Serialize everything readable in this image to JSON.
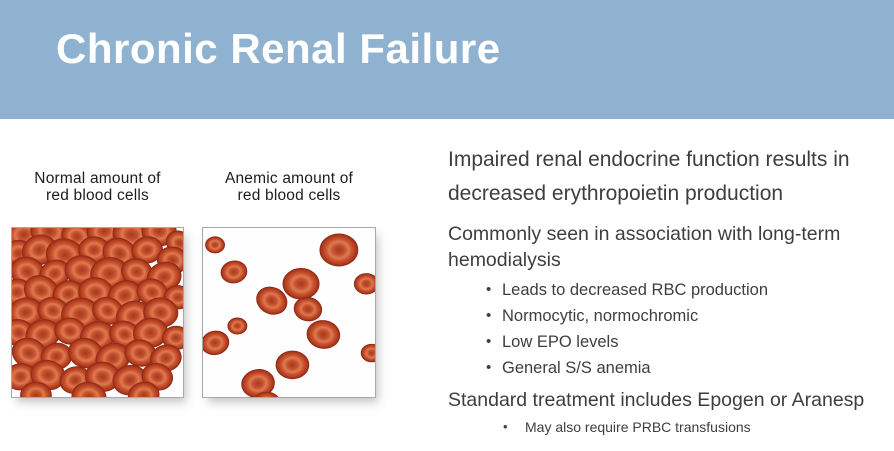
{
  "slide": {
    "title": "Chronic Renal Failure"
  },
  "figures": [
    {
      "caption": "Normal amount of red blood cells",
      "cells": [
        [
          7,
          4,
          10,
          -15
        ],
        [
          22,
          2,
          11,
          10
        ],
        [
          38,
          5,
          9,
          20
        ],
        [
          54,
          2,
          10,
          -10
        ],
        [
          70,
          4,
          11,
          15
        ],
        [
          86,
          2,
          10,
          0
        ],
        [
          98,
          9,
          8,
          30
        ],
        [
          4,
          15,
          9,
          0
        ],
        [
          16,
          13,
          10,
          -20
        ],
        [
          31,
          16,
          11,
          12
        ],
        [
          48,
          13,
          9,
          0
        ],
        [
          63,
          15,
          10,
          25
        ],
        [
          79,
          13,
          9,
          -12
        ],
        [
          94,
          19,
          9,
          8
        ],
        [
          9,
          26,
          10,
          18
        ],
        [
          25,
          27,
          9,
          -25
        ],
        [
          41,
          25,
          10,
          5
        ],
        [
          57,
          27,
          11,
          -8
        ],
        [
          73,
          26,
          9,
          14
        ],
        [
          89,
          29,
          10,
          -18
        ],
        [
          3,
          38,
          9,
          -5
        ],
        [
          17,
          37,
          10,
          22
        ],
        [
          33,
          39,
          9,
          -15
        ],
        [
          49,
          38,
          10,
          8
        ],
        [
          66,
          40,
          10,
          -22
        ],
        [
          82,
          38,
          9,
          16
        ],
        [
          97,
          41,
          8,
          0
        ],
        [
          8,
          50,
          10,
          -10
        ],
        [
          24,
          49,
          9,
          15
        ],
        [
          40,
          51,
          11,
          -5
        ],
        [
          56,
          49,
          9,
          20
        ],
        [
          71,
          52,
          10,
          -15
        ],
        [
          87,
          50,
          10,
          5
        ],
        [
          4,
          62,
          9,
          12
        ],
        [
          18,
          63,
          10,
          -18
        ],
        [
          34,
          61,
          9,
          8
        ],
        [
          50,
          64,
          10,
          -12
        ],
        [
          66,
          63,
          9,
          18
        ],
        [
          81,
          62,
          10,
          -8
        ],
        [
          96,
          65,
          8,
          0
        ],
        [
          10,
          74,
          10,
          20
        ],
        [
          26,
          76,
          9,
          -10
        ],
        [
          43,
          74,
          10,
          15
        ],
        [
          59,
          77,
          10,
          -20
        ],
        [
          75,
          74,
          9,
          10
        ],
        [
          90,
          77,
          9,
          -14
        ],
        [
          5,
          88,
          9,
          -8
        ],
        [
          21,
          87,
          10,
          12
        ],
        [
          37,
          90,
          9,
          -16
        ],
        [
          53,
          88,
          10,
          6
        ],
        [
          69,
          90,
          10,
          -12
        ],
        [
          85,
          88,
          9,
          18
        ],
        [
          14,
          99,
          9,
          0
        ],
        [
          45,
          100,
          10,
          10
        ],
        [
          77,
          99,
          9,
          -10
        ]
      ]
    },
    {
      "caption": "Anemic amount of red blood cells",
      "cells": [
        [
          7,
          10,
          5.5,
          0
        ],
        [
          18,
          26,
          7.5,
          -10
        ],
        [
          40,
          43,
          9,
          25
        ],
        [
          57,
          33,
          10.5,
          0
        ],
        [
          61,
          48,
          8,
          10
        ],
        [
          79,
          13,
          11,
          0
        ],
        [
          95,
          33,
          7,
          0
        ],
        [
          20,
          58,
          5.5,
          0
        ],
        [
          7,
          68,
          8,
          -12
        ],
        [
          70,
          63,
          9.5,
          8
        ],
        [
          98,
          74,
          6,
          0
        ],
        [
          52,
          81,
          9.5,
          0
        ],
        [
          32,
          92,
          9.5,
          -10
        ],
        [
          37,
          104,
          8,
          0
        ]
      ]
    }
  ],
  "content": {
    "intro_lines": [
      "Impaired renal endocrine function results in",
      "decreased erythropoietin production"
    ],
    "assoc_lines": [
      "Commonly seen in association with long-term",
      "hemodialysis"
    ],
    "bullets": [
      "Leads to decreased RBC production",
      "Normocytic, normochromic",
      "Low EPO levels",
      "General S/S anemia"
    ],
    "treatment": "Standard treatment includes Epogen or Aranesp",
    "sub_bullets": [
      "May also require PRBC transfusions"
    ]
  },
  "colors": {
    "header_bg": "#90B2D1",
    "title_text": "#FFFFFF",
    "body_text": "#3E3E3E",
    "caption_text": "#1D1D1D",
    "cell_body": "#C2452A",
    "cell_highlight": "#DD7A52",
    "cell_edge": "#8E2D19",
    "panel_border": "#A8A8A8"
  }
}
